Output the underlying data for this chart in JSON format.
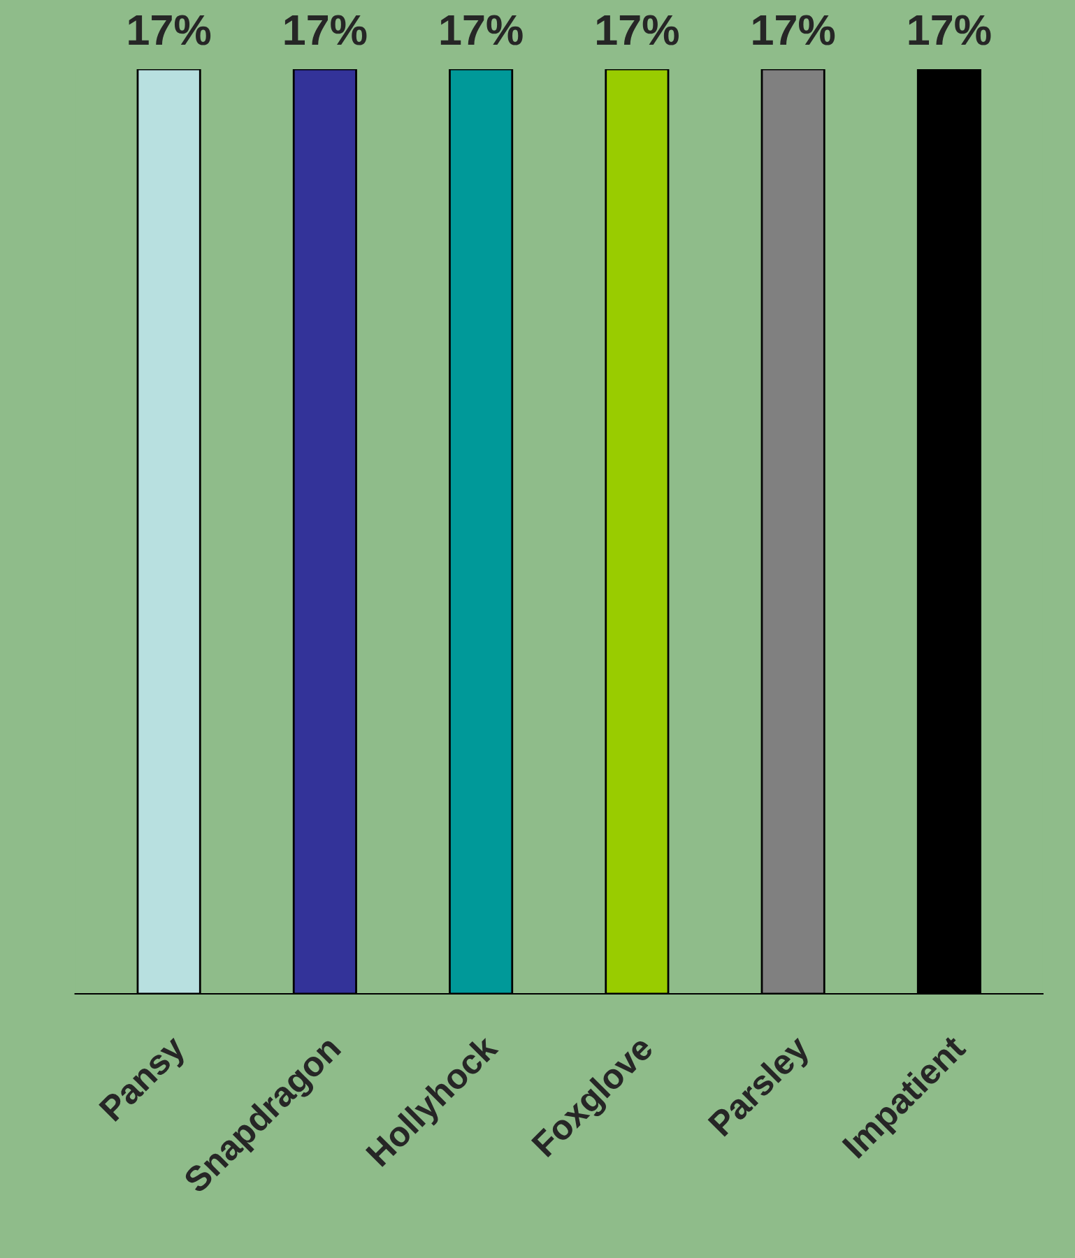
{
  "chart_data": {
    "type": "bar",
    "categories": [
      "Pansy",
      "Snapdragon",
      "Hollyhock",
      "Foxglove",
      "Parsley",
      "Impatient"
    ],
    "values": [
      17,
      17,
      17,
      17,
      17,
      17
    ],
    "colors": [
      "#b8e0e0",
      "#333399",
      "#009999",
      "#99cc00",
      "#808080",
      "#000000"
    ],
    "data_labels": true,
    "value_labels": [
      "17%",
      "17%",
      "17%",
      "17%",
      "17%",
      "17%"
    ]
  }
}
